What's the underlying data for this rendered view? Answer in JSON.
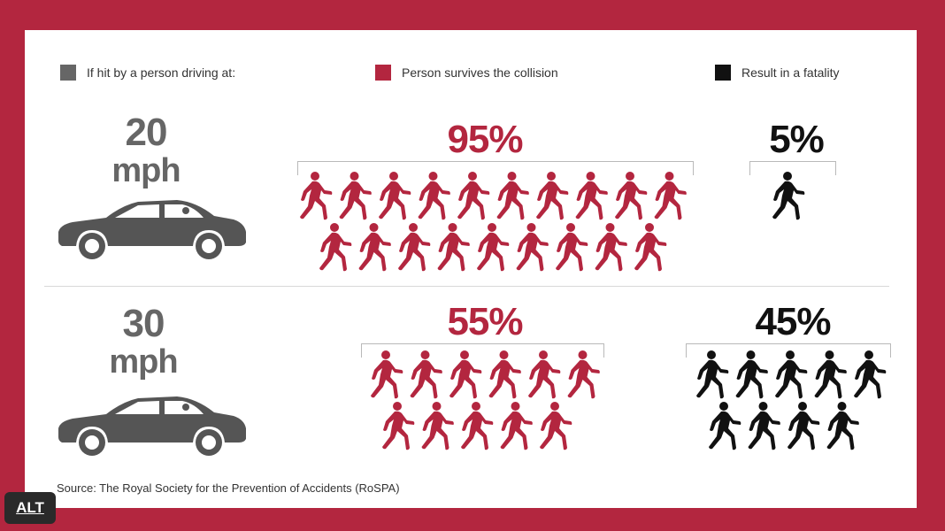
{
  "legend": {
    "driving_label": "If hit by a person driving at:",
    "survives_label": "Person survives the collision",
    "fatality_label": "Result in a fatality"
  },
  "colors": {
    "frame": "#b3263f",
    "survive": "#b3263f",
    "fatal": "#111111",
    "driving": "#666666"
  },
  "rows": [
    {
      "speed": "20",
      "unit": "mph",
      "survive_pct": "95%",
      "fatal_pct": "5%",
      "survive_count": 19,
      "fatal_count": 1
    },
    {
      "speed": "30",
      "unit": "mph",
      "survive_pct": "55%",
      "fatal_pct": "45%",
      "survive_count": 11,
      "fatal_count": 9
    }
  ],
  "source": "Source: The Royal Society for the Prevention of Accidents (RoSPA)",
  "alt_badge": "ALT",
  "icons": {
    "car": "car-icon",
    "person": "walking-person-icon"
  }
}
